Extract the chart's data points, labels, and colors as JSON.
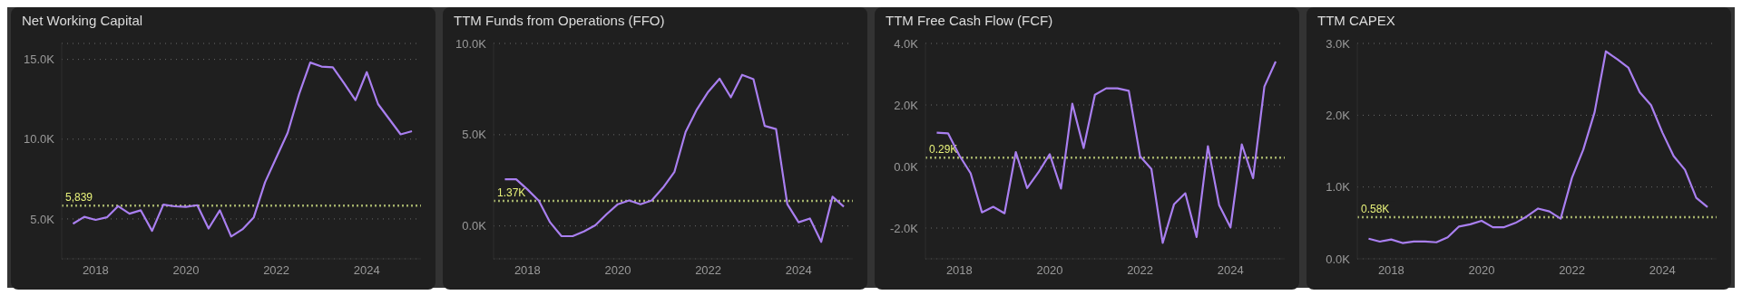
{
  "chart_data": [
    {
      "type": "line",
      "title": "Net Working Capital",
      "x": [
        2017.5,
        2017.75,
        2018,
        2018.25,
        2018.5,
        2018.75,
        2019,
        2019.25,
        2019.5,
        2019.75,
        2020,
        2020.25,
        2020.5,
        2020.75,
        2021,
        2021.25,
        2021.5,
        2021.75,
        2022,
        2022.25,
        2022.5,
        2022.75,
        2023,
        2023.25,
        2023.5,
        2023.75,
        2024,
        2024.25,
        2024.5,
        2024.75,
        2025
      ],
      "series": [
        {
          "color": "#a97ff0",
          "values": [
            4700,
            5130,
            4940,
            5100,
            5800,
            5330,
            5540,
            4250,
            5900,
            5790,
            5750,
            5860,
            4400,
            5540,
            3900,
            4350,
            5100,
            7300,
            8850,
            10400,
            12800,
            14800,
            14550,
            14500,
            13500,
            12450,
            14200,
            12200,
            11250,
            10300,
            10500
          ]
        }
      ],
      "xlim": [
        2017.25,
        2025.2
      ],
      "xticks": [
        2018,
        2020,
        2022,
        2024
      ],
      "ylim": [
        2500,
        16000
      ],
      "yticks": [
        {
          "value": 5000,
          "label": "5.0K"
        },
        {
          "value": 10000,
          "label": "10.0K"
        },
        {
          "value": 15000,
          "label": "15.0K"
        }
      ],
      "ref_lines": [
        {
          "axis": "y",
          "value": 5839,
          "label": "5,839",
          "color": "#a3b06a",
          "line_style": "dotted"
        }
      ],
      "grid": "y",
      "legend": false,
      "marker": "none",
      "line_style": "solid"
    },
    {
      "type": "line",
      "title": "TTM Funds from Operations (FFO)",
      "x": [
        2017.5,
        2017.75,
        2018,
        2018.25,
        2018.5,
        2018.75,
        2019,
        2019.25,
        2019.5,
        2019.75,
        2020,
        2020.25,
        2020.5,
        2020.75,
        2021,
        2021.25,
        2021.5,
        2021.75,
        2022,
        2022.25,
        2022.5,
        2022.75,
        2023,
        2023.25,
        2023.5,
        2023.75,
        2024,
        2024.25,
        2024.5,
        2024.75,
        2025
      ],
      "series": [
        {
          "color": "#a97ff0",
          "values": [
            2560,
            2560,
            2000,
            1390,
            200,
            -550,
            -560,
            -300,
            30,
            640,
            1190,
            1400,
            1190,
            1400,
            2100,
            2950,
            5150,
            6390,
            7350,
            8070,
            7050,
            8280,
            8040,
            5480,
            5310,
            1190,
            200,
            410,
            -870,
            1600,
            1060
          ]
        }
      ],
      "xlim": [
        2017.25,
        2025.2
      ],
      "xticks": [
        2018,
        2020,
        2022,
        2024
      ],
      "ylim": [
        -1800,
        10000
      ],
      "yticks": [
        {
          "value": 0,
          "label": "0.0K"
        },
        {
          "value": 5000,
          "label": "5.0K"
        },
        {
          "value": 10000,
          "label": "10.0K"
        }
      ],
      "ref_lines": [
        {
          "axis": "y",
          "value": 1370,
          "label": "1.37K",
          "color": "#a3b06a",
          "line_style": "dotted"
        }
      ],
      "grid": "y",
      "legend": false,
      "marker": "none",
      "line_style": "solid"
    },
    {
      "type": "line",
      "title": "TTM Free Cash Flow (FCF)",
      "x": [
        2017.5,
        2017.75,
        2018,
        2018.25,
        2018.5,
        2018.75,
        2019,
        2019.25,
        2019.5,
        2019.75,
        2020,
        2020.25,
        2020.5,
        2020.75,
        2021,
        2021.25,
        2021.5,
        2021.75,
        2022,
        2022.25,
        2022.5,
        2022.75,
        2023,
        2023.25,
        2023.5,
        2023.75,
        2024,
        2024.25,
        2024.5,
        2024.75,
        2025
      ],
      "series": [
        {
          "color": "#a97ff0",
          "values": [
            1100,
            1080,
            360,
            -220,
            -1490,
            -1310,
            -1520,
            470,
            -700,
            -190,
            400,
            -720,
            2040,
            600,
            2330,
            2540,
            2540,
            2460,
            330,
            -80,
            -2480,
            -1230,
            -870,
            -2290,
            660,
            -1260,
            -1980,
            720,
            -380,
            2600,
            3410
          ]
        }
      ],
      "xlim": [
        2017.25,
        2025.2
      ],
      "xticks": [
        2018,
        2020,
        2022,
        2024
      ],
      "ylim": [
        -3000,
        4000
      ],
      "yticks": [
        {
          "value": -2000,
          "label": "-2.0K"
        },
        {
          "value": 0,
          "label": "0.0K"
        },
        {
          "value": 2000,
          "label": "2.0K"
        },
        {
          "value": 4000,
          "label": "4.0K"
        }
      ],
      "ref_lines": [
        {
          "axis": "y",
          "value": 290,
          "label": "0.29K",
          "color": "#a3b06a",
          "line_style": "dotted"
        }
      ],
      "grid": "y",
      "legend": false,
      "marker": "none",
      "line_style": "solid"
    },
    {
      "type": "line",
      "title": "TTM CAPEX",
      "x": [
        2017.5,
        2017.75,
        2018,
        2018.25,
        2018.5,
        2018.75,
        2019,
        2019.25,
        2019.5,
        2019.75,
        2020,
        2020.25,
        2020.5,
        2020.75,
        2021,
        2021.25,
        2021.5,
        2021.75,
        2022,
        2022.25,
        2022.5,
        2022.75,
        2023,
        2023.25,
        2023.5,
        2023.75,
        2024,
        2024.25,
        2024.5,
        2024.75,
        2025
      ],
      "series": [
        {
          "color": "#a97ff0",
          "values": [
            280,
            240,
            270,
            220,
            240,
            240,
            230,
            300,
            450,
            480,
            530,
            440,
            440,
            500,
            590,
            700,
            660,
            560,
            1130,
            1520,
            2040,
            2890,
            2780,
            2660,
            2320,
            2140,
            1760,
            1430,
            1240,
            850,
            720
          ]
        }
      ],
      "xlim": [
        2017.25,
        2025.2
      ],
      "xticks": [
        2018,
        2020,
        2022,
        2024
      ],
      "ylim": [
        0,
        3000
      ],
      "yticks": [
        {
          "value": 0,
          "label": "0.0K"
        },
        {
          "value": 1000,
          "label": "1.0K"
        },
        {
          "value": 2000,
          "label": "2.0K"
        },
        {
          "value": 3000,
          "label": "3.0K"
        }
      ],
      "ref_lines": [
        {
          "axis": "y",
          "value": 580,
          "label": "0.58K",
          "color": "#a3b06a",
          "line_style": "dotted"
        }
      ],
      "grid": "y",
      "legend": false,
      "marker": "none",
      "line_style": "solid"
    }
  ]
}
